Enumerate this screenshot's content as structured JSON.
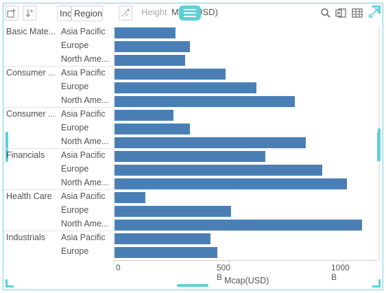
{
  "toolbar": {
    "chip_inc": "Inc",
    "chip_region": "Region",
    "height_label": "Height",
    "measure_label": "Mcap(USD)",
    "icons": [
      "add-row-icon",
      "sort-icon",
      "scatter-icon",
      "drag-handle-icon",
      "search-icon",
      "excel-icon",
      "table-icon",
      "expand-icon"
    ]
  },
  "colors": {
    "bar": "#4a7fb5",
    "accent": "#5fcfd8"
  },
  "chart_data": {
    "type": "bar",
    "orientation": "horizontal",
    "xlabel": "Mcap(USD)",
    "xlim": [
      0,
      1200
    ],
    "ticks": [
      {
        "value": 0,
        "label": "0"
      },
      {
        "value": 500,
        "label": "500 B"
      },
      {
        "value": 1000,
        "label": "1000 B"
      }
    ],
    "groups": [
      {
        "name": "Basic Mate...",
        "rows": [
          {
            "region": "Asia Pacific",
            "value": 265
          },
          {
            "region": "Europe",
            "value": 330
          },
          {
            "region": "North Ame...",
            "value": 308
          }
        ]
      },
      {
        "name": "Consumer ...",
        "rows": [
          {
            "region": "Asia Pacific",
            "value": 485
          },
          {
            "region": "Europe",
            "value": 620
          },
          {
            "region": "North Ame...",
            "value": 788
          }
        ]
      },
      {
        "name": "Consumer ...",
        "rows": [
          {
            "region": "Asia Pacific",
            "value": 258
          },
          {
            "region": "Europe",
            "value": 328
          },
          {
            "region": "North Ame...",
            "value": 835
          }
        ]
      },
      {
        "name": "Financials",
        "rows": [
          {
            "region": "Asia Pacific",
            "value": 660
          },
          {
            "region": "Europe",
            "value": 908
          },
          {
            "region": "North Ame...",
            "value": 1015
          }
        ]
      },
      {
        "name": "Health Care",
        "rows": [
          {
            "region": "Asia Pacific",
            "value": 135
          },
          {
            "region": "Europe",
            "value": 510
          },
          {
            "region": "North Ame...",
            "value": 1080
          }
        ]
      },
      {
        "name": "Industrials",
        "rows": [
          {
            "region": "Asia Pacific",
            "value": 420
          },
          {
            "region": "Europe",
            "value": 450
          }
        ]
      }
    ]
  }
}
